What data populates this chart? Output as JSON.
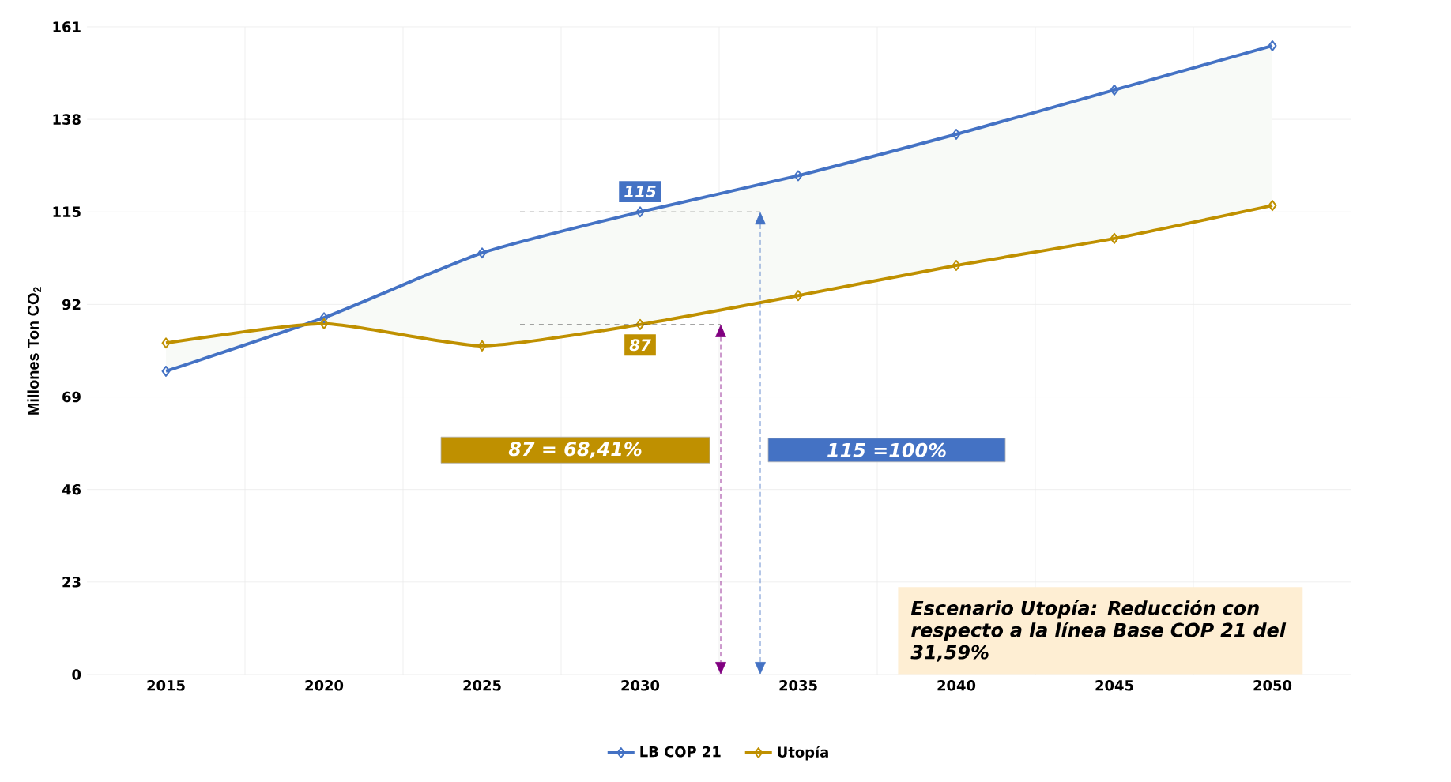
{
  "chart_data": {
    "type": "line",
    "ylabel": "Millones Ton CO$_{2}$",
    "categories": [
      "2015",
      "2020",
      "2025",
      "2030",
      "2035",
      "2040",
      "2045",
      "2050"
    ],
    "series": [
      {
        "name": "LB COP 21",
        "color": "#4472c4",
        "values": [
          75.4,
          88.7,
          104.8,
          115,
          124,
          134.3,
          145.3,
          156.3
        ],
        "lower": [
          82.4,
          87.2,
          81.7,
          87,
          94.2,
          101.7,
          108.4,
          116.6
        ],
        "upper": [
          75.4,
          88.7,
          104.8,
          115,
          124,
          134.3,
          145.3,
          156.3
        ]
      },
      {
        "name": "Utopía",
        "color": "#bf9000",
        "values": [
          82.4,
          87.2,
          81.7,
          87,
          94.2,
          101.7,
          108.4,
          116.6
        ]
      }
    ],
    "ylim": [
      0,
      161
    ],
    "yticks": [
      0,
      23,
      46,
      69,
      92,
      115,
      138,
      161
    ],
    "grid": true,
    "legend": "bottom",
    "marker": "diamond",
    "line_style": "solid",
    "annotations": [
      {
        "text": "115",
        "x": "2030",
        "y": 115
      },
      {
        "text": "87",
        "x": "2030",
        "y": 87
      },
      "87 = 68,41%",
      "115 =100%",
      "Escenario Utopía: Reducción con respecto a la línea Base COP 21 del 31,59%"
    ]
  }
}
